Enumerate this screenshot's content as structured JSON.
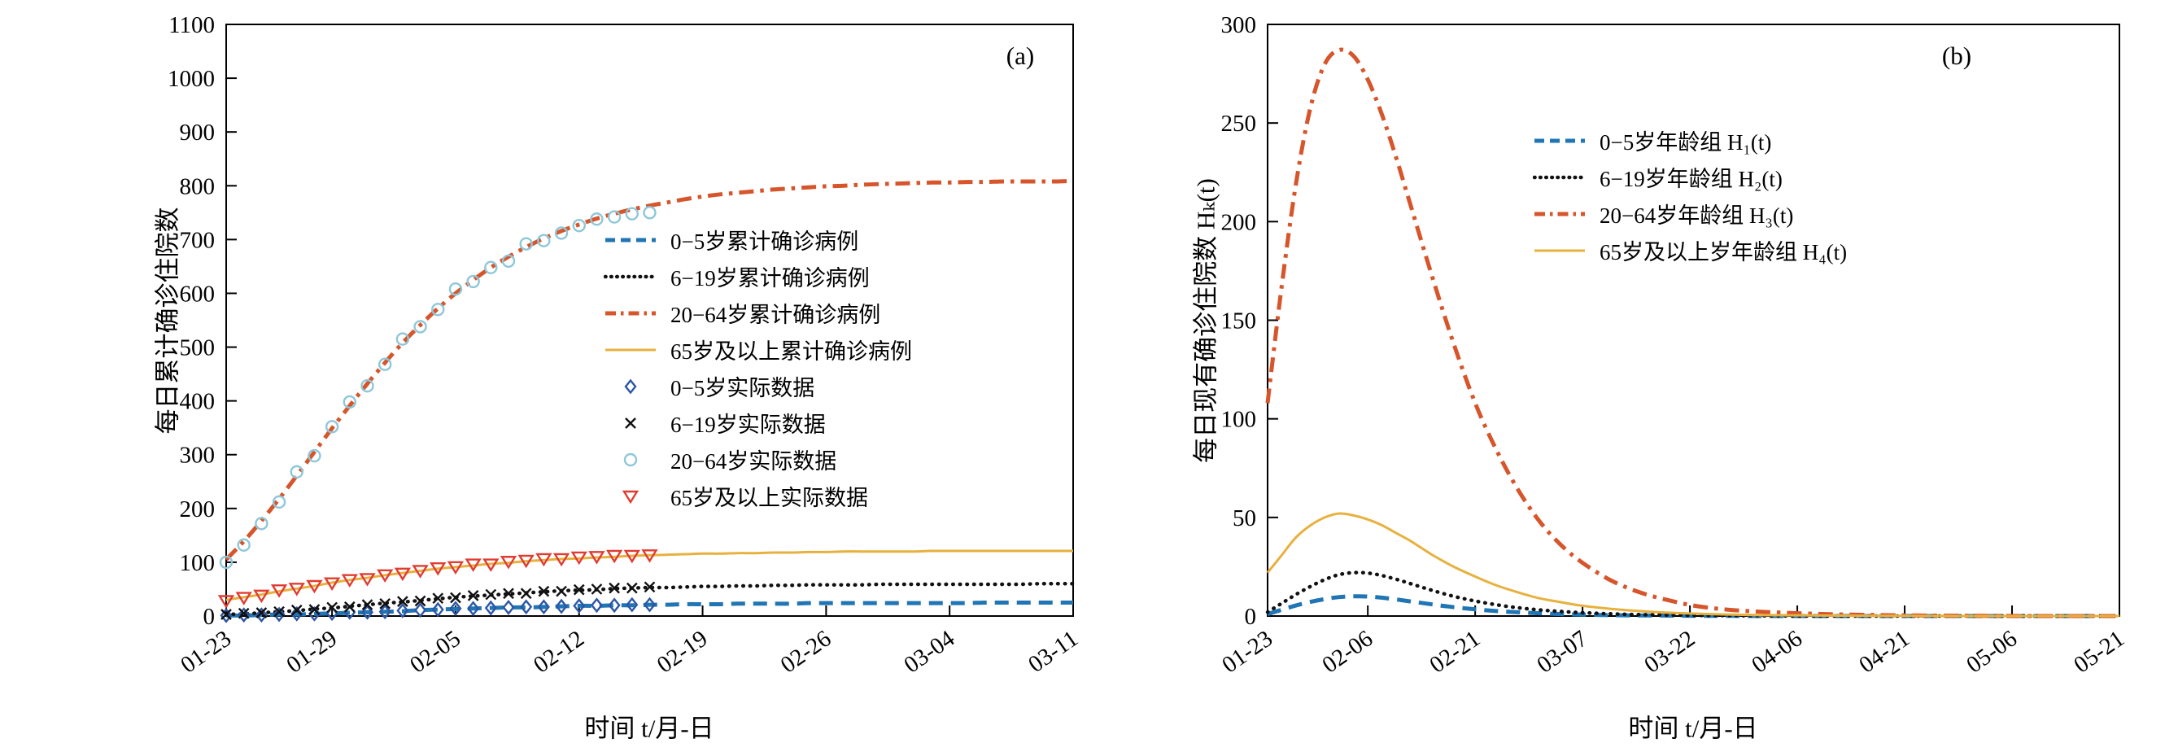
{
  "chart_data": [
    {
      "type": "line",
      "panel_label": "(a)",
      "xlabel": "时间 t/月-日",
      "ylabel": "每日累计确诊住院数",
      "ylim": [
        0,
        1100
      ],
      "ytick_step": 100,
      "xlim": [
        0,
        48
      ],
      "grid": false,
      "legend_position": "inside-center-right",
      "xticks": {
        "labels": [
          "01-23",
          "01-29",
          "02-05",
          "02-12",
          "02-19",
          "02-26",
          "03-04",
          "03-11"
        ],
        "days": [
          0,
          6,
          13,
          20,
          27,
          34,
          41,
          48
        ]
      },
      "x": [
        0,
        1,
        2,
        3,
        4,
        5,
        6,
        7,
        8,
        9,
        10,
        11,
        12,
        13,
        14,
        15,
        16,
        17,
        18,
        19,
        20,
        21,
        22,
        23,
        24,
        25,
        26,
        27,
        28,
        29,
        30,
        31,
        32,
        33,
        34,
        35,
        36,
        37,
        38,
        39,
        40,
        41,
        42,
        43,
        44,
        45,
        46,
        47,
        48
      ],
      "series": [
        {
          "key": "age-0-5-cumulative-line",
          "name": "0−5岁累计确诊病例",
          "style": "dashed",
          "color": "#2076b4",
          "values": [
            1,
            1,
            2,
            3,
            3,
            4,
            5,
            6,
            7,
            8,
            9,
            11,
            12,
            13,
            14,
            15,
            16,
            16,
            17,
            18,
            19,
            19,
            20,
            20,
            21,
            21,
            22,
            22,
            22,
            23,
            23,
            23,
            23,
            24,
            24,
            24,
            24,
            24,
            24,
            24,
            24,
            24,
            24,
            25,
            25,
            25,
            25,
            25,
            25
          ]
        },
        {
          "key": "age-6-19-cumulative-line",
          "name": "6−19岁累计确诊病例",
          "style": "dotted",
          "color": "#111111",
          "values": [
            3,
            4,
            6,
            8,
            10,
            13,
            15,
            18,
            21,
            24,
            26,
            29,
            32,
            35,
            37,
            39,
            41,
            43,
            45,
            47,
            48,
            49,
            51,
            52,
            53,
            53,
            54,
            55,
            55,
            56,
            56,
            57,
            57,
            58,
            58,
            58,
            58,
            59,
            59,
            59,
            59,
            59,
            59,
            59,
            59,
            59,
            60,
            60,
            60
          ]
        },
        {
          "key": "age-20-64-cumulative-line",
          "name": "20−64岁累计确诊病例",
          "style": "dashdot",
          "color": "#d6552b",
          "values": [
            105,
            139,
            177,
            218,
            261,
            305,
            349,
            391,
            432,
            471,
            508,
            541,
            572,
            600,
            625,
            648,
            668,
            686,
            702,
            716,
            728,
            739,
            748,
            756,
            763,
            769,
            775,
            780,
            784,
            787,
            790,
            793,
            795,
            797,
            799,
            800,
            802,
            803,
            804,
            805,
            806,
            806,
            807,
            807,
            808,
            808,
            808,
            808,
            809
          ]
        },
        {
          "key": "age-65plus-cumulative-line",
          "name": "65岁及以上累计确诊病例",
          "style": "solid",
          "color": "#e7b13e",
          "values": [
            30,
            35,
            40,
            46,
            51,
            56,
            62,
            67,
            71,
            76,
            80,
            84,
            88,
            91,
            94,
            97,
            99,
            102,
            104,
            106,
            107,
            109,
            110,
            112,
            113,
            114,
            115,
            116,
            116,
            117,
            117,
            118,
            118,
            119,
            119,
            120,
            120,
            120,
            120,
            120,
            121,
            121,
            121,
            121,
            121,
            121,
            121,
            121,
            121
          ]
        }
      ],
      "scatter_x": [
        0,
        1,
        2,
        3,
        4,
        5,
        6,
        7,
        8,
        9,
        10,
        11,
        12,
        13,
        14,
        15,
        16,
        17,
        18,
        19,
        20,
        21,
        22,
        23,
        24
      ],
      "scatter": [
        {
          "key": "age-0-5-data-points",
          "name": "0−5岁实际数据",
          "marker": "diamond",
          "color": "#2c56a5",
          "values": [
            1,
            2,
            2,
            3,
            4,
            4,
            5,
            7,
            7,
            8,
            10,
            11,
            12,
            14,
            14,
            15,
            16,
            17,
            17,
            18,
            19,
            20,
            20,
            21,
            21
          ]
        },
        {
          "key": "age-6-19-data-points",
          "name": "6−19岁实际数据",
          "marker": "x",
          "color": "#111111",
          "values": [
            3,
            5,
            6,
            8,
            11,
            12,
            16,
            17,
            21,
            23,
            27,
            28,
            33,
            34,
            38,
            40,
            42,
            42,
            46,
            46,
            49,
            50,
            52,
            52,
            54
          ]
        },
        {
          "key": "age-20-64-data-points",
          "name": "20−64岁实际数据",
          "marker": "circle",
          "color": "#8ec7d9",
          "values": [
            100,
            132,
            172,
            212,
            268,
            298,
            352,
            398,
            428,
            468,
            515,
            538,
            570,
            608,
            622,
            648,
            660,
            692,
            698,
            712,
            726,
            738,
            742,
            748,
            750
          ]
        },
        {
          "key": "age-65plus-data-points",
          "name": "65岁及以上实际数据",
          "marker": "triangle-down",
          "color": "#e03c31",
          "values": [
            28,
            34,
            38,
            48,
            51,
            56,
            61,
            67,
            69,
            76,
            79,
            84,
            89,
            91,
            96,
            96,
            101,
            103,
            106,
            106,
            109,
            110,
            112,
            112,
            113
          ]
        }
      ]
    },
    {
      "type": "line",
      "panel_label": "(b)",
      "xlabel": "时间 t/月-日",
      "ylabel": "每日现有确诊住院数 Hₖ(t)",
      "ylim": [
        0,
        300
      ],
      "ytick_step": 50,
      "xlim": [
        0,
        119
      ],
      "grid": false,
      "legend_position": "inside-top-right",
      "xticks": {
        "labels": [
          "01-23",
          "02-06",
          "02-21",
          "03-07",
          "03-22",
          "04-06",
          "04-21",
          "05-06",
          "05-21"
        ],
        "days": [
          0,
          14,
          29,
          44,
          59,
          74,
          89,
          104,
          119
        ]
      },
      "x": [
        0,
        2,
        4,
        6,
        8,
        10,
        12,
        14,
        16,
        18,
        20,
        23,
        26,
        29,
        32,
        35,
        38,
        41,
        44,
        48,
        52,
        56,
        60,
        65,
        70,
        75,
        80,
        90,
        100,
        110,
        119
      ],
      "series": [
        {
          "key": "h1-age-0-5-line",
          "name": "0−5岁年龄组 H₁(t)",
          "style": "dashed",
          "color": "#2076b4",
          "values": [
            1,
            3.2,
            5.4,
            7.2,
            8.6,
            9.6,
            10,
            9.9,
            9.3,
            8.4,
            7.4,
            5.9,
            4.5,
            3.4,
            2.5,
            1.9,
            1.4,
            1,
            0.7,
            0.45,
            0.3,
            0.2,
            0.12,
            0.07,
            0,
            0,
            0,
            0,
            0,
            0,
            0
          ]
        },
        {
          "key": "h2-age-6-19-line",
          "name": "6−19岁年龄组 H₂(t)",
          "style": "dotted",
          "color": "#111111",
          "values": [
            2,
            6.5,
            11,
            15,
            18.5,
            21,
            22,
            21.8,
            20.5,
            18.6,
            16.4,
            13,
            10,
            7.6,
            5.7,
            4.2,
            3.1,
            2.3,
            1.7,
            1.1,
            0.7,
            0.5,
            0.3,
            0.2,
            0.1,
            0,
            0,
            0,
            0,
            0,
            0
          ]
        },
        {
          "key": "h3-age-20-64-line",
          "name": "20−64岁年龄组 H₃(t)",
          "style": "dashdot",
          "color": "#d6552b",
          "values": [
            108,
            168,
            220,
            258,
            280,
            287,
            284,
            272,
            254,
            232,
            208,
            172,
            138,
            108,
            84,
            64,
            48,
            36,
            27,
            18,
            12,
            8,
            5,
            3,
            2,
            1.3,
            0.8,
            0.3,
            0.1,
            0,
            0
          ]
        },
        {
          "key": "h4-age-65plus-line",
          "name": "65岁及以上岁年龄组 H₄(t)",
          "style": "solid",
          "color": "#e7b13e",
          "values": [
            22,
            31,
            40,
            46,
            50,
            52,
            51,
            49,
            46,
            42,
            38,
            31,
            25,
            20,
            15.5,
            12,
            9,
            7,
            5.2,
            3.6,
            2.5,
            1.7,
            1.2,
            0.7,
            0.4,
            0.3,
            0.2,
            0.1,
            0,
            0,
            0
          ]
        }
      ]
    }
  ]
}
